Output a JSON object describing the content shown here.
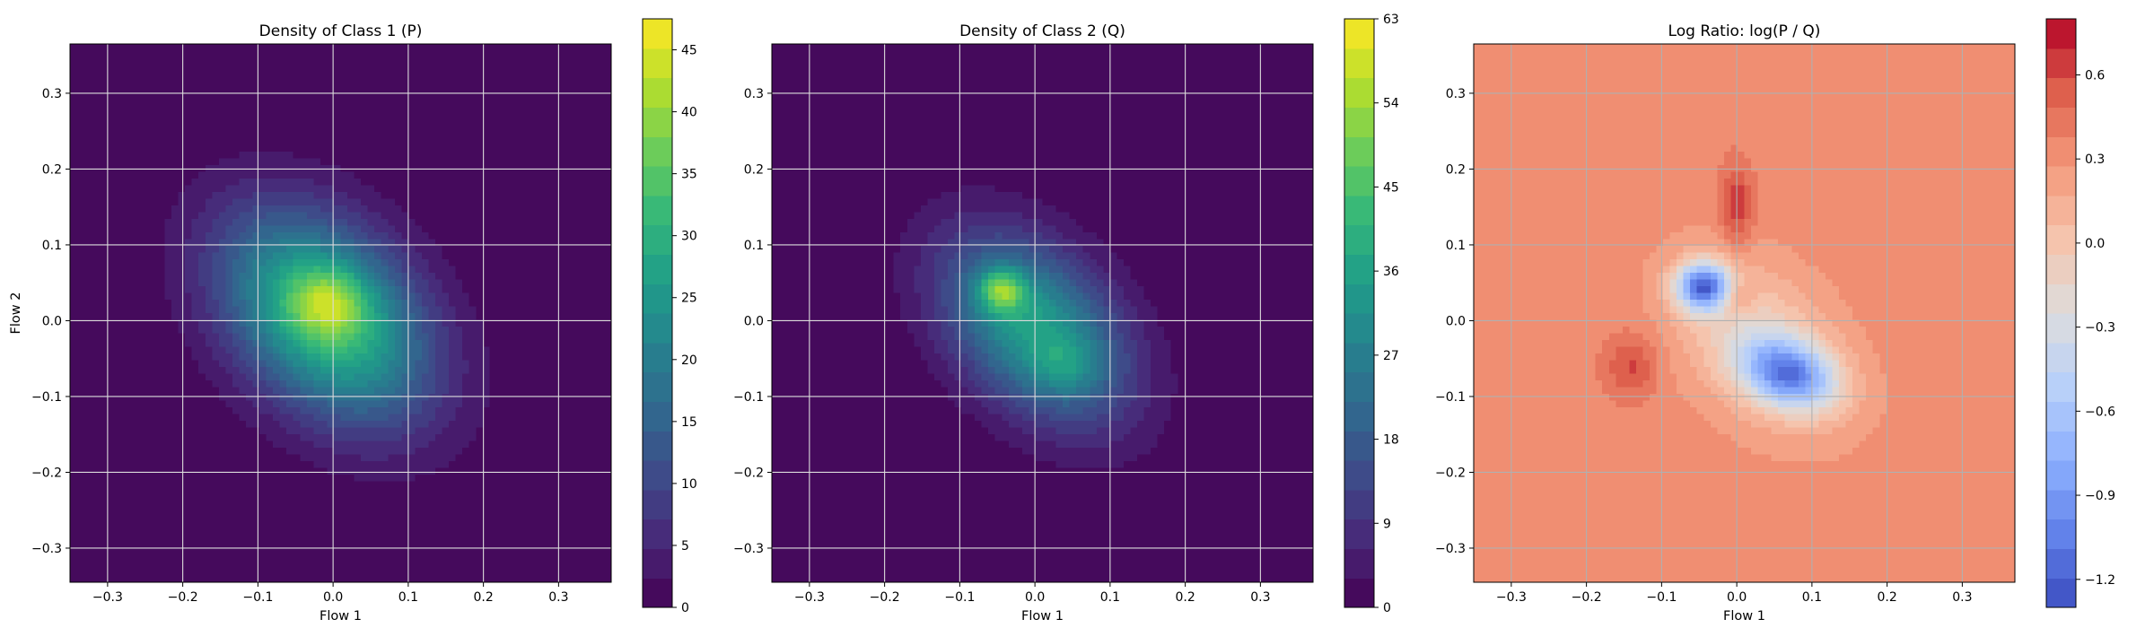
{
  "chart_data": [
    {
      "type": "heatmap",
      "title": "Density of Class 1 (P)",
      "xlabel": "Flow 1",
      "ylabel": "Flow 2",
      "xlim": [
        -0.35,
        0.37
      ],
      "ylim": [
        -0.345,
        0.365
      ],
      "xticks": [
        "−0.3",
        "−0.2",
        "−0.1",
        "0.0",
        "0.1",
        "0.2",
        "0.3"
      ],
      "yticks": [
        "−0.3",
        "−0.2",
        "−0.1",
        "0.0",
        "0.1",
        "0.2",
        "0.3"
      ],
      "grid": true,
      "colormap": "viridis",
      "colorbar": {
        "min": 0,
        "max": 47.5,
        "ticks": [
          "0",
          "5",
          "10",
          "15",
          "20",
          "25",
          "30",
          "35",
          "40",
          "45"
        ]
      },
      "density": {
        "background": 0,
        "peak": 47,
        "components": [
          {
            "center": [
              -0.01,
              0.005
            ],
            "sigma": [
              0.11,
              0.075
            ],
            "rotation_deg": -45,
            "amplitude": 34
          },
          {
            "center": [
              -0.005,
              0.025
            ],
            "sigma": [
              0.035,
              0.03
            ],
            "rotation_deg": 0,
            "amplitude": 12
          }
        ]
      }
    },
    {
      "type": "heatmap",
      "title": "Density of Class 2 (Q)",
      "xlabel": "Flow 1",
      "ylabel": "",
      "xlim": [
        -0.35,
        0.37
      ],
      "ylim": [
        -0.345,
        0.365
      ],
      "xticks": [
        "−0.3",
        "−0.2",
        "−0.1",
        "0.0",
        "0.1",
        "0.2",
        "0.3"
      ],
      "yticks": [
        "−0.3",
        "−0.2",
        "−0.1",
        "0.0",
        "0.1",
        "0.2",
        "0.3"
      ],
      "grid": true,
      "colormap": "viridis",
      "colorbar": {
        "min": 0,
        "max": 63,
        "ticks": [
          "0",
          "9",
          "18",
          "27",
          "36",
          "45",
          "54",
          "63"
        ]
      },
      "density": {
        "background": 0,
        "peak": 63,
        "components": [
          {
            "center": [
              0.0,
              -0.01
            ],
            "sigma": [
              0.1,
              0.065
            ],
            "rotation_deg": -45,
            "amplitude": 36
          },
          {
            "center": [
              -0.045,
              0.04
            ],
            "sigma": [
              0.022,
              0.02
            ],
            "rotation_deg": 0,
            "amplitude": 26
          },
          {
            "center": [
              0.045,
              -0.06
            ],
            "sigma": [
              0.03,
              0.025
            ],
            "rotation_deg": 0,
            "amplitude": 8
          }
        ]
      }
    },
    {
      "type": "heatmap",
      "title": "Log Ratio: log(P / Q)",
      "xlabel": "Flow 1",
      "ylabel": "",
      "xlim": [
        -0.35,
        0.37
      ],
      "ylim": [
        -0.345,
        0.365
      ],
      "xticks": [
        "−0.3",
        "−0.2",
        "−0.1",
        "0.0",
        "0.1",
        "0.2",
        "0.3"
      ],
      "yticks": [
        "−0.3",
        "−0.2",
        "−0.1",
        "0.0",
        "0.1",
        "0.2",
        "0.3"
      ],
      "grid": true,
      "colormap": "coolwarm",
      "colorbar": {
        "min": -1.3,
        "max": 0.8,
        "ticks": [
          "−1.2",
          "−0.9",
          "−0.6",
          "−0.3",
          "0.0",
          "0.3",
          "0.6"
        ]
      },
      "density": {
        "background": 0.33,
        "peak": 0.8,
        "components": [
          {
            "center": [
              -0.045,
              0.045
            ],
            "sigma": [
              0.025,
              0.022
            ],
            "rotation_deg": 0,
            "amplitude": -1.35
          },
          {
            "center": [
              0.07,
              -0.07
            ],
            "sigma": [
              0.045,
              0.03
            ],
            "rotation_deg": -20,
            "amplitude": -1.1
          },
          {
            "center": [
              0.03,
              -0.03
            ],
            "sigma": [
              0.09,
              0.06
            ],
            "rotation_deg": -45,
            "amplitude": -0.45
          },
          {
            "center": [
              0.0,
              0.15
            ],
            "sigma": [
              0.015,
              0.04
            ],
            "rotation_deg": 0,
            "amplitude": 0.35
          },
          {
            "center": [
              -0.14,
              -0.06
            ],
            "sigma": [
              0.025,
              0.03
            ],
            "rotation_deg": 0,
            "amplitude": 0.28
          },
          {
            "center": [
              0.0,
              0.03
            ],
            "sigma": [
              0.015,
              0.015
            ],
            "rotation_deg": 0,
            "amplitude": 0.3
          }
        ]
      }
    }
  ]
}
